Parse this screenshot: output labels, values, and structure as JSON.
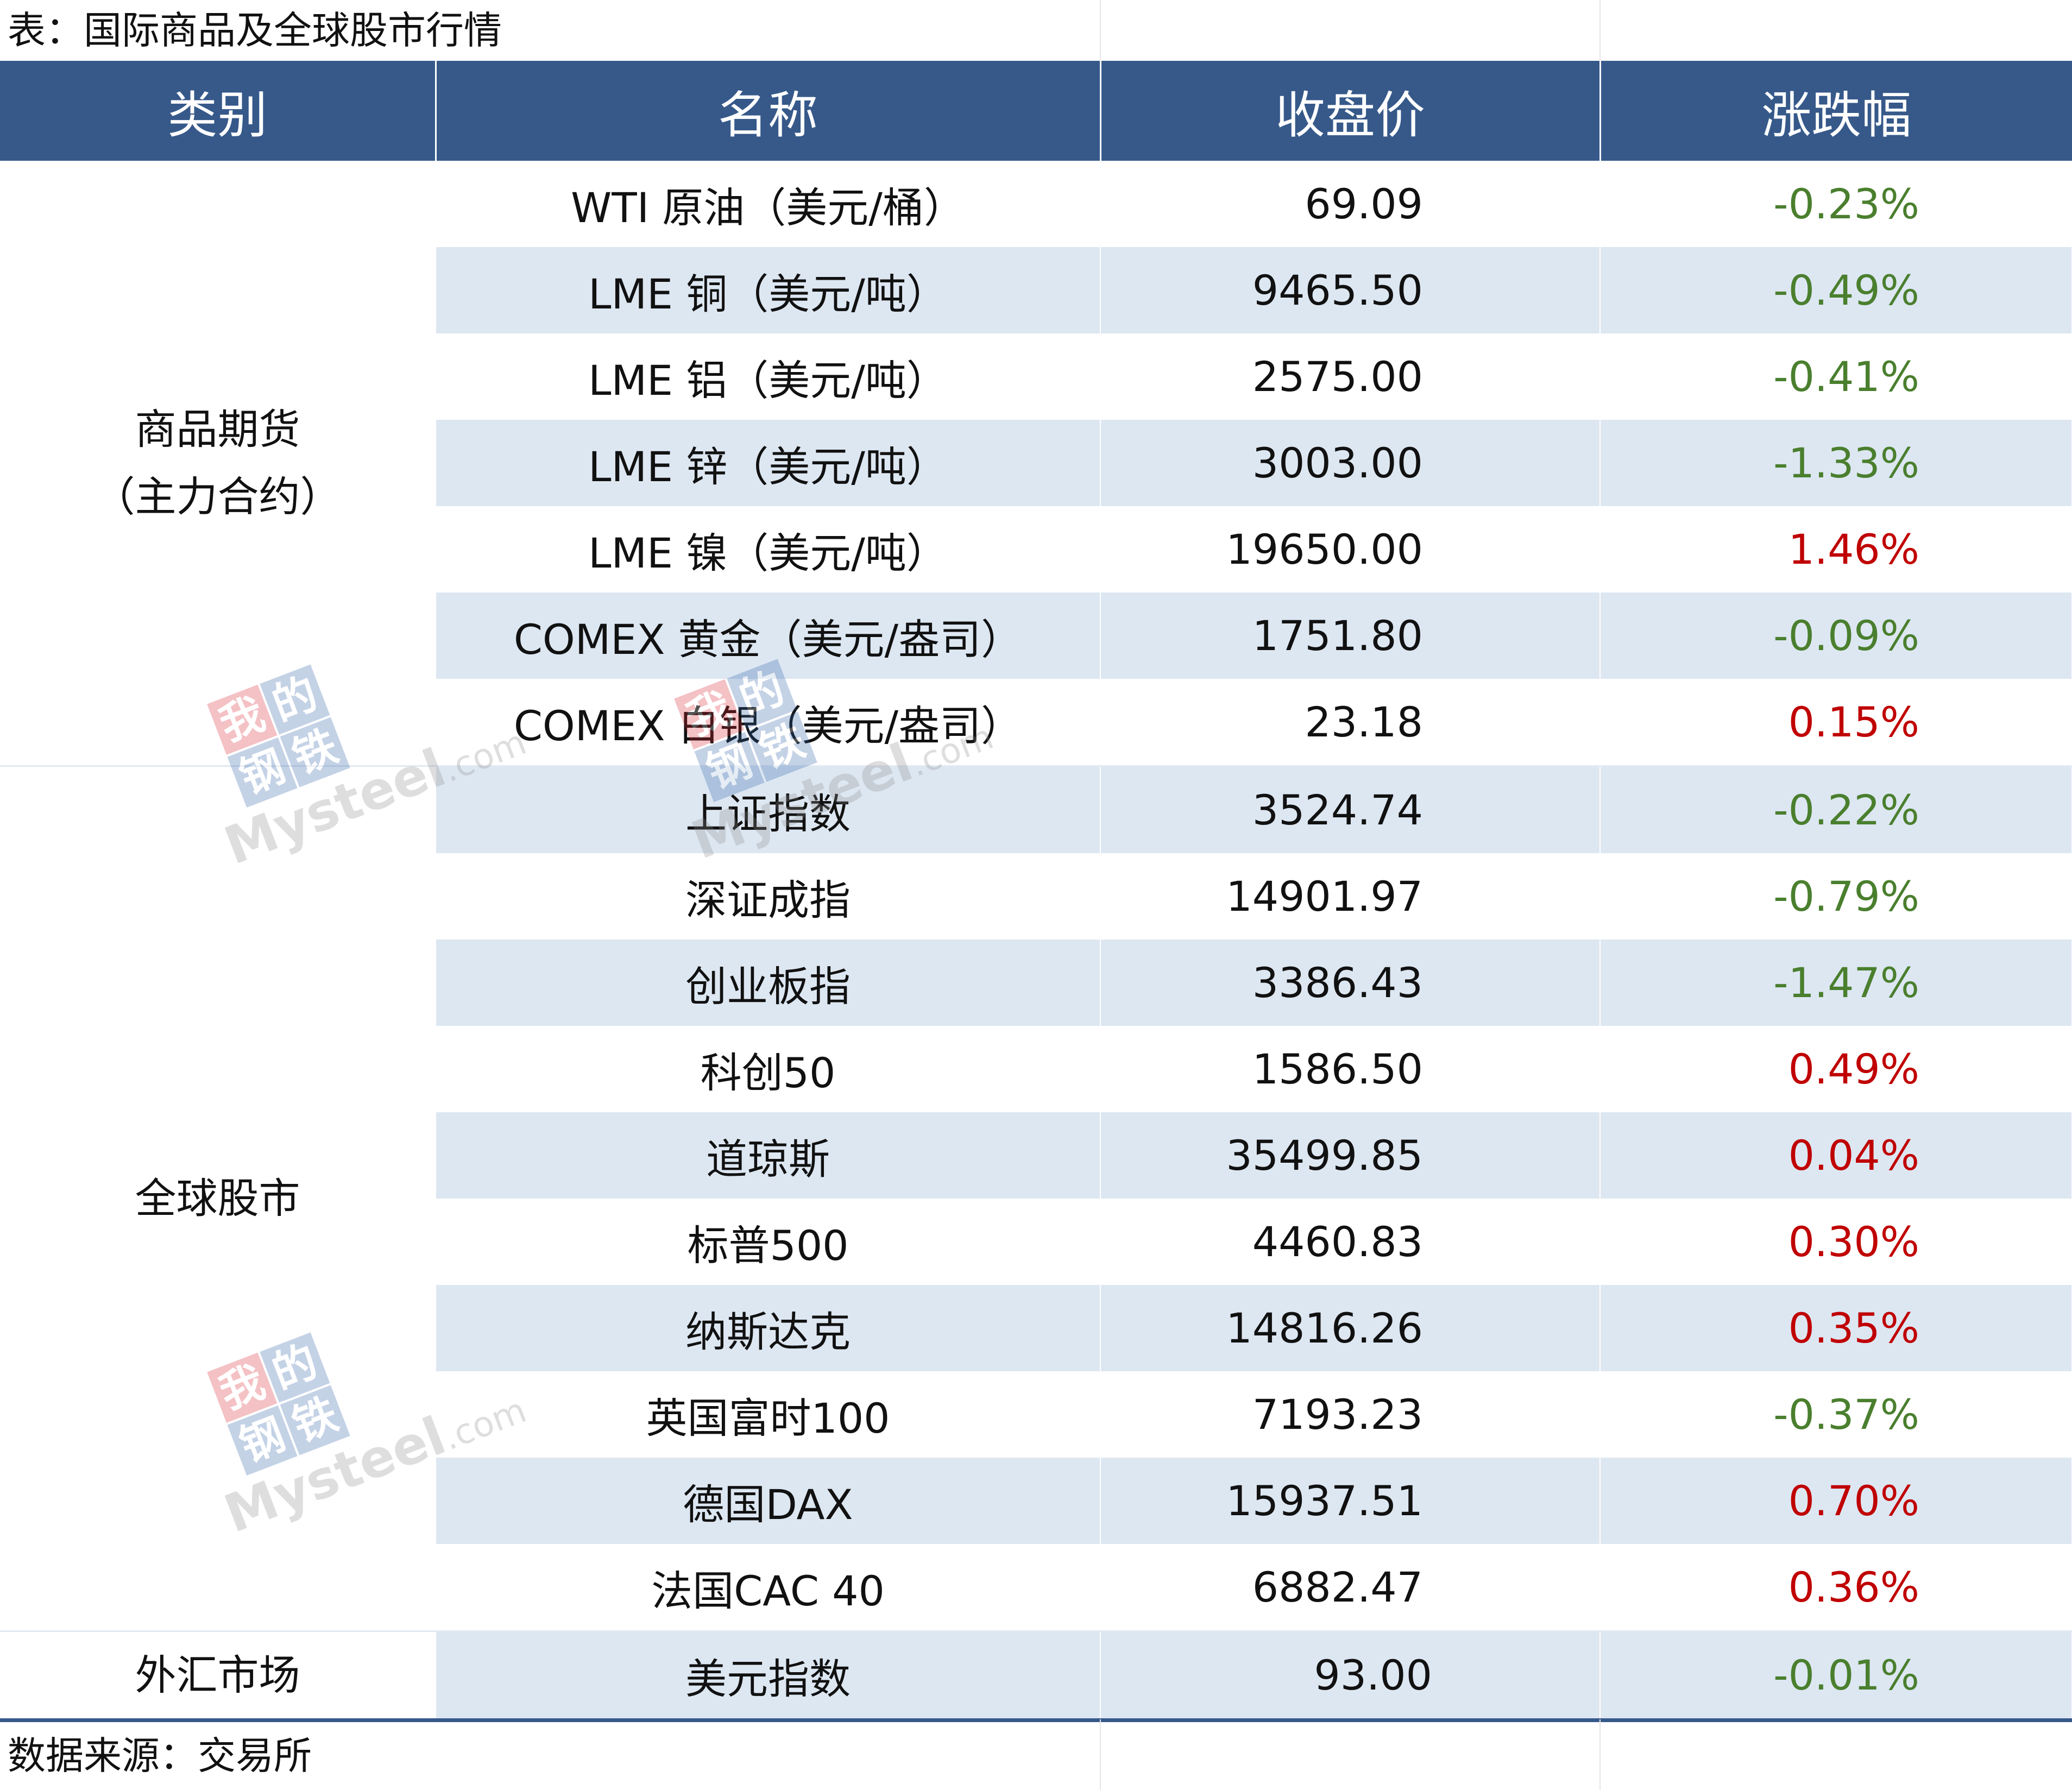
{
  "caption": {
    "title": "表：国际商品及全球股市行情",
    "source": "数据来源：交易所"
  },
  "colors": {
    "header_bg": "#36598a",
    "row_shade": "#dde7f2",
    "up": "#c00000",
    "down": "#4a7f2e"
  },
  "table": {
    "headers": [
      "类别",
      "名称",
      "收盘价",
      "涨跌幅"
    ],
    "categories": {
      "futures_line1": "商品期货",
      "futures_line2": "（主力合约）",
      "stocks": "全球股市",
      "fx": "外汇市场"
    },
    "rows": [
      {
        "name": "WTI 原油（美元/桶）",
        "price": "69.09",
        "change": "-0.23%"
      },
      {
        "name": "LME 铜（美元/吨）",
        "price": "9465.50",
        "change": "-0.49%"
      },
      {
        "name": "LME 铝（美元/吨）",
        "price": "2575.00",
        "change": "-0.41%"
      },
      {
        "name": "LME 锌（美元/吨）",
        "price": "3003.00",
        "change": "-1.33%"
      },
      {
        "name": "LME 镍（美元/吨）",
        "price": "19650.00",
        "change": "1.46%"
      },
      {
        "name": "COMEX 黄金（美元/盎司）",
        "price": "1751.80",
        "change": "-0.09%"
      },
      {
        "name": "COMEX 白银（美元/盎司）",
        "price": "23.18",
        "change": "0.15%"
      },
      {
        "name": "上证指数",
        "price": "3524.74",
        "change": "-0.22%"
      },
      {
        "name": "深证成指",
        "price": "14901.97",
        "change": "-0.79%"
      },
      {
        "name": "创业板指",
        "price": "3386.43",
        "change": "-1.47%"
      },
      {
        "name": "科创50",
        "price": "1586.50",
        "change": "0.49%"
      },
      {
        "name": "道琼斯",
        "price": "35499.85",
        "change": "0.04%"
      },
      {
        "name": "标普500",
        "price": "4460.83",
        "change": "0.30%"
      },
      {
        "name": "纳斯达克",
        "price": "14816.26",
        "change": "0.35%"
      },
      {
        "name": "英国富时100",
        "price": "7193.23",
        "change": "-0.37%"
      },
      {
        "name": "德国DAX",
        "price": "15937.51",
        "change": "0.70%"
      },
      {
        "name": "法国CAC 40",
        "price": "6882.47",
        "change": "0.36%"
      },
      {
        "name": "美元指数",
        "price": "93.00",
        "change": "-0.01%"
      }
    ]
  },
  "watermark": {
    "seal": [
      "我",
      "的",
      "钢",
      "铁"
    ],
    "brand": "Mysteel",
    "domain": ".com"
  }
}
